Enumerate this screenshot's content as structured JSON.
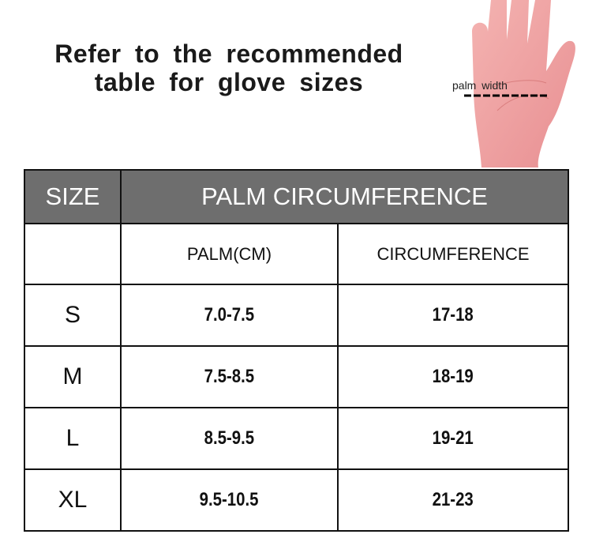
{
  "title": {
    "line1": "Refer to the recommended",
    "line2": "table for glove sizes"
  },
  "illustration": {
    "palm_label": "palm width",
    "icon": "hand-palm-icon"
  },
  "table": {
    "header": {
      "size": "SIZE",
      "group": "PALM CIRCUMFERENCE"
    },
    "subheader": {
      "palm": "PALM(CM)",
      "circumference": "CIRCUMFERENCE"
    },
    "rows": [
      {
        "size": "S",
        "palm": "7.0-7.5",
        "circumference": "17-18"
      },
      {
        "size": "M",
        "palm": "7.5-8.5",
        "circumference": "18-19"
      },
      {
        "size": "L",
        "palm": "8.5-9.5",
        "circumference": "19-21"
      },
      {
        "size": "XL",
        "palm": "9.5-10.5",
        "circumference": "21-23"
      }
    ]
  },
  "colors": {
    "header_bg": "#6e6e6e",
    "skin": "#ee9f9f"
  }
}
